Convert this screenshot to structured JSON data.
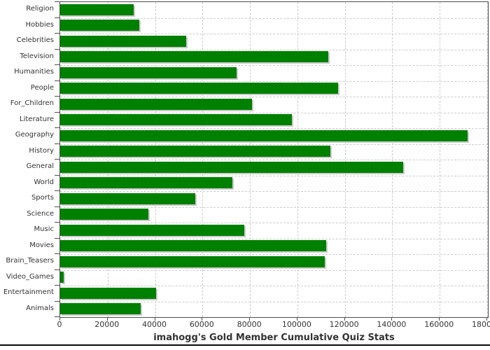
{
  "title": "imahogg's Gold Member Cumulative Quiz Stats",
  "chart_data": {
    "type": "bar",
    "orientation": "horizontal",
    "title": "imahogg's Gold Member Cumulative Quiz Stats",
    "categories": [
      "Religion",
      "Hobbies",
      "Celebrities",
      "Television",
      "Humanities",
      "People",
      "For_Children",
      "Literature",
      "Geography",
      "History",
      "General",
      "World",
      "Sports",
      "Science",
      "Music",
      "Movies",
      "Brain_Teasers",
      "Video_Games",
      "Entertainment",
      "Animals"
    ],
    "values": [
      31100,
      33300,
      53000,
      113000,
      74300,
      117100,
      80900,
      97600,
      171800,
      114000,
      144700,
      72600,
      57000,
      37300,
      77700,
      112200,
      111500,
      1400,
      40500,
      33800
    ],
    "xlabel": "",
    "ylabel": "",
    "xlim": [
      0,
      180300
    ],
    "x_ticks": [
      0,
      20000,
      40000,
      60000,
      80000,
      100000,
      120000,
      140000,
      160000,
      180000
    ],
    "x_tick_labels": [
      "0",
      "20000",
      "40000",
      "60000",
      "80000",
      "100000",
      "120000",
      "140000",
      "160000",
      "180000"
    ],
    "grid": "dashed",
    "legend": "none"
  },
  "colors": {
    "bar": "#008000",
    "bar_shadow": "#cccccc",
    "grid": "#cccccc",
    "plot_border": "#4d4d4d",
    "tick": "#4d4d4d",
    "text": "#333333",
    "bottom_rule": "#0a0a0a",
    "background": "#ffffff"
  }
}
